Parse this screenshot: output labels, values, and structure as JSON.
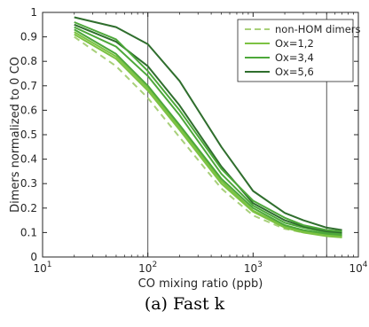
{
  "caption": "(a) Fast k",
  "chart_data": {
    "type": "line",
    "xlabel": "CO mixing ratio (ppb)",
    "ylabel": "Dimers normalized to 0 CO",
    "xscale": "log",
    "xlim": [
      10,
      10000
    ],
    "ylim": [
      0,
      1
    ],
    "xticks": [
      {
        "value": 10,
        "base": "10",
        "exp": "1"
      },
      {
        "value": 100,
        "base": "10",
        "exp": "2"
      },
      {
        "value": 1000,
        "base": "10",
        "exp": "3"
      },
      {
        "value": 10000,
        "base": "10",
        "exp": "4"
      }
    ],
    "yticks": [
      "0",
      "0.1",
      "0.2",
      "0.3",
      "0.4",
      "0.5",
      "0.6",
      "0.7",
      "0.8",
      "0.9",
      "1"
    ],
    "grid": false,
    "vlines": [
      100,
      5000
    ],
    "legend_position": "top-right",
    "x": [
      20,
      50,
      100,
      200,
      500,
      1000,
      2000,
      3000,
      5000,
      7000
    ],
    "series": [
      {
        "name": "non-HOM dimers",
        "color": "#a8d07a",
        "dash": true,
        "in_legend": true,
        "values": [
          0.9,
          0.78,
          0.65,
          0.49,
          0.28,
          0.17,
          0.115,
          0.1,
          0.09,
          0.085
        ]
      },
      {
        "name": "Ox=1,2",
        "color": "#7cc243",
        "dash": false,
        "in_legend": true,
        "values": [
          0.91,
          0.81,
          0.68,
          0.52,
          0.3,
          0.185,
          0.12,
          0.1,
          0.085,
          0.08
        ]
      },
      {
        "color": "#7cc243",
        "dash": false,
        "in_legend": false,
        "values": [
          0.92,
          0.82,
          0.69,
          0.53,
          0.31,
          0.19,
          0.125,
          0.105,
          0.09,
          0.085
        ]
      },
      {
        "name": "Ox=3,4",
        "color": "#4da83a",
        "dash": false,
        "in_legend": true,
        "values": [
          0.93,
          0.83,
          0.7,
          0.54,
          0.32,
          0.2,
          0.13,
          0.11,
          0.095,
          0.09
        ]
      },
      {
        "color": "#4da83a",
        "dash": false,
        "in_legend": false,
        "values": [
          0.94,
          0.86,
          0.74,
          0.58,
          0.34,
          0.21,
          0.14,
          0.12,
          0.1,
          0.095
        ]
      },
      {
        "name": "Ox=5,6",
        "color": "#2f6e2d",
        "dash": false,
        "in_legend": true,
        "values": [
          0.95,
          0.88,
          0.78,
          0.62,
          0.37,
          0.22,
          0.15,
          0.125,
          0.105,
          0.1
        ]
      },
      {
        "color": "#2f6e2d",
        "dash": false,
        "in_legend": false,
        "values": [
          0.98,
          0.94,
          0.87,
          0.72,
          0.45,
          0.27,
          0.18,
          0.15,
          0.12,
          0.11
        ]
      },
      {
        "color": "#4da83a",
        "dash": false,
        "in_legend": false,
        "values": [
          0.96,
          0.89,
          0.76,
          0.6,
          0.36,
          0.23,
          0.16,
          0.13,
          0.11,
          0.105
        ]
      }
    ]
  }
}
